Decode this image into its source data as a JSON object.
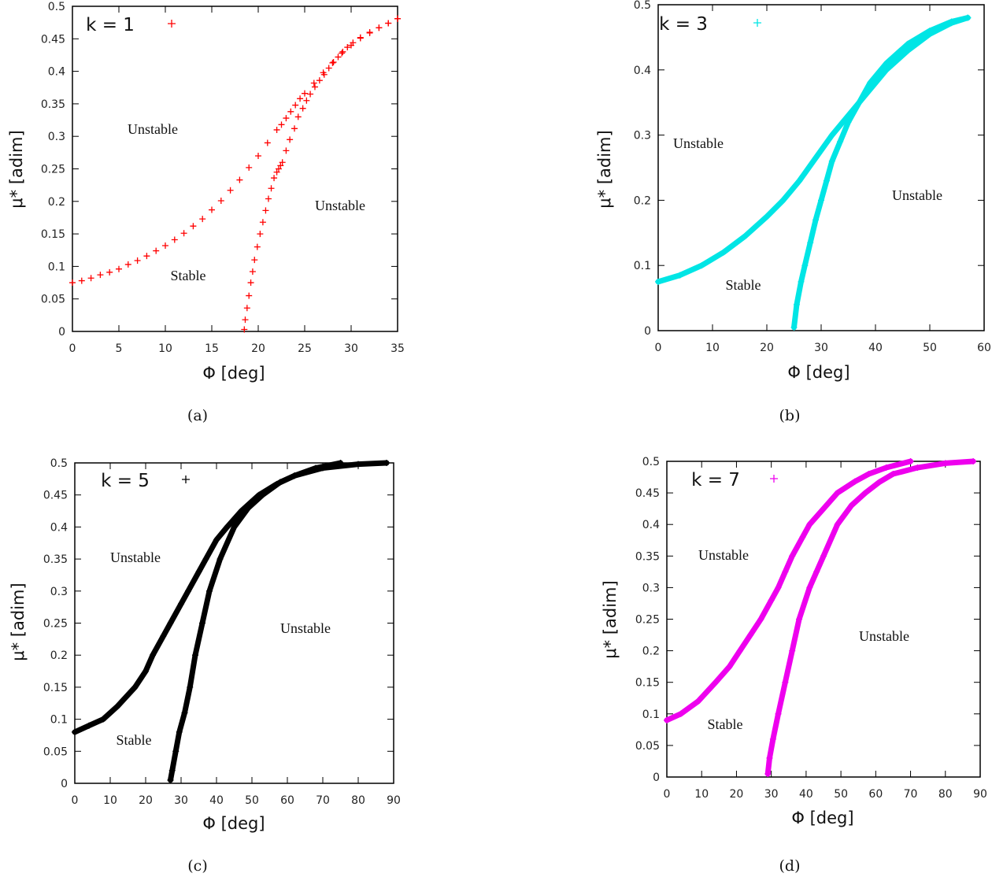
{
  "chart_data": [
    {
      "type": "scatter",
      "caption": "(a)",
      "legend": "k = 1",
      "color": "#ff0000",
      "xlabel": "Φ [deg]",
      "ylabel": "μ* [adim]",
      "xlim": [
        0,
        35
      ],
      "ylim": [
        0,
        0.5
      ],
      "xticks": [
        0,
        5,
        10,
        15,
        20,
        25,
        30,
        35
      ],
      "yticks": [
        0,
        0.05,
        0.1,
        0.15,
        0.2,
        0.25,
        0.3,
        0.35,
        0.4,
        0.45,
        0.5
      ],
      "annotations": [
        "Unstable",
        "Unstable",
        "Stable"
      ],
      "series": [
        {
          "x": [
            0,
            1,
            2,
            3,
            4,
            5,
            6,
            7,
            8,
            9,
            10,
            11,
            12,
            13,
            14,
            15,
            16,
            17,
            18,
            19,
            20,
            21,
            22,
            22.5,
            23,
            23.5,
            24,
            24.5,
            25,
            26,
            27,
            28,
            29,
            30,
            31,
            32,
            33,
            34,
            35
          ],
          "y": [
            0.075,
            0.078,
            0.082,
            0.087,
            0.091,
            0.096,
            0.103,
            0.109,
            0.116,
            0.124,
            0.132,
            0.141,
            0.151,
            0.162,
            0.173,
            0.187,
            0.201,
            0.217,
            0.233,
            0.252,
            0.27,
            0.29,
            0.31,
            0.318,
            0.328,
            0.338,
            0.348,
            0.358,
            0.366,
            0.382,
            0.398,
            0.413,
            0.428,
            0.44,
            0.451,
            0.459,
            0.467,
            0.474,
            0.481
          ]
        },
        {
          "x": [
            18.5,
            18.6,
            18.8,
            19,
            19.2,
            19.4,
            19.6,
            19.9,
            20.2,
            20.5,
            20.8,
            21.1,
            21.4,
            21.7,
            22,
            22.2,
            22.4,
            22.6,
            23,
            23.4,
            23.9,
            24.3,
            24.8,
            25.2,
            25.6,
            26.1,
            26.6,
            27.1,
            27.6,
            28.1,
            28.6,
            29.1,
            29.6,
            30.2,
            31,
            32,
            33,
            34,
            35
          ],
          "y": [
            0.003,
            0.018,
            0.036,
            0.055,
            0.075,
            0.092,
            0.11,
            0.13,
            0.15,
            0.168,
            0.186,
            0.204,
            0.22,
            0.236,
            0.245,
            0.25,
            0.255,
            0.26,
            0.278,
            0.295,
            0.312,
            0.33,
            0.343,
            0.355,
            0.365,
            0.376,
            0.386,
            0.395,
            0.405,
            0.414,
            0.422,
            0.43,
            0.437,
            0.444,
            0.452,
            0.46,
            0.467,
            0.474,
            0.481
          ]
        }
      ]
    },
    {
      "type": "scatter",
      "caption": "(b)",
      "legend": "k = 3",
      "color": "#00e5e5",
      "xlabel": "Φ [deg]",
      "ylabel": "μ* [adim]",
      "xlim": [
        0,
        60
      ],
      "ylim": [
        0,
        0.5
      ],
      "xticks": [
        0,
        10,
        20,
        30,
        40,
        50,
        60
      ],
      "yticks": [
        0,
        0.1,
        0.2,
        0.3,
        0.4,
        0.5
      ],
      "annotations": [
        "Unstable",
        "Unstable",
        "Stable"
      ],
      "series": [
        {
          "x": [
            0,
            4,
            8,
            12,
            16,
            20,
            23,
            26,
            29,
            32,
            35,
            38,
            42,
            46,
            50,
            54,
            57
          ],
          "y": [
            0.075,
            0.085,
            0.1,
            0.12,
            0.145,
            0.175,
            0.2,
            0.23,
            0.265,
            0.3,
            0.33,
            0.36,
            0.4,
            0.43,
            0.455,
            0.472,
            0.48
          ]
        },
        {
          "x": [
            25,
            25.5,
            26.3,
            27,
            28,
            29,
            30,
            31,
            32,
            33.5,
            35,
            37,
            39,
            42,
            46,
            50,
            54,
            57
          ],
          "y": [
            0.005,
            0.04,
            0.075,
            0.1,
            0.135,
            0.17,
            0.2,
            0.23,
            0.26,
            0.29,
            0.32,
            0.35,
            0.38,
            0.41,
            0.44,
            0.46,
            0.474,
            0.48
          ]
        }
      ]
    },
    {
      "type": "scatter",
      "caption": "(c)",
      "legend": "k = 5",
      "color": "#000000",
      "xlabel": "Φ [deg]",
      "ylabel": "μ* [adim]",
      "xlim": [
        0,
        90
      ],
      "ylim": [
        0,
        0.5
      ],
      "xticks": [
        0,
        10,
        20,
        30,
        40,
        50,
        60,
        70,
        80,
        90
      ],
      "yticks": [
        0,
        0.05,
        0.1,
        0.15,
        0.2,
        0.25,
        0.3,
        0.35,
        0.4,
        0.45,
        0.5
      ],
      "annotations": [
        "Unstable",
        "Unstable",
        "Stable"
      ],
      "series": [
        {
          "x": [
            0,
            4,
            8,
            12,
            17,
            20,
            22,
            25,
            27,
            30,
            32,
            35,
            37,
            40,
            43,
            47,
            52,
            57,
            62,
            70,
            80,
            88
          ],
          "y": [
            0.08,
            0.09,
            0.1,
            0.12,
            0.15,
            0.175,
            0.2,
            0.23,
            0.25,
            0.28,
            0.3,
            0.33,
            0.35,
            0.38,
            0.4,
            0.425,
            0.45,
            0.467,
            0.48,
            0.492,
            0.498,
            0.5
          ]
        },
        {
          "x": [
            27,
            27.5,
            28.5,
            29.5,
            31,
            32.5,
            34,
            36,
            38,
            41,
            45,
            49,
            53,
            58,
            62,
            68,
            75
          ],
          "y": [
            0.005,
            0.02,
            0.05,
            0.08,
            0.11,
            0.15,
            0.2,
            0.25,
            0.3,
            0.35,
            0.4,
            0.43,
            0.45,
            0.47,
            0.48,
            0.492,
            0.5
          ]
        }
      ]
    },
    {
      "type": "scatter",
      "caption": "(d)",
      "legend": "k = 7",
      "color": "#ee00ee",
      "xlabel": "Φ [deg]",
      "ylabel": "μ* [adim]",
      "xlim": [
        0,
        90
      ],
      "ylim": [
        0,
        0.5
      ],
      "xticks": [
        0,
        10,
        20,
        30,
        40,
        50,
        60,
        70,
        80,
        90
      ],
      "yticks": [
        0,
        0.05,
        0.1,
        0.15,
        0.2,
        0.25,
        0.3,
        0.35,
        0.4,
        0.45,
        0.5
      ],
      "annotations": [
        "Unstable",
        "Unstable",
        "Stable"
      ],
      "series": [
        {
          "x": [
            0,
            4,
            9,
            14,
            18,
            21,
            24,
            27,
            30,
            32,
            34,
            36,
            39,
            41,
            45,
            49,
            54,
            58,
            63,
            70
          ],
          "y": [
            0.09,
            0.1,
            0.12,
            0.15,
            0.175,
            0.2,
            0.225,
            0.25,
            0.28,
            0.3,
            0.325,
            0.35,
            0.38,
            0.4,
            0.425,
            0.45,
            0.468,
            0.48,
            0.49,
            0.5
          ]
        },
        {
          "x": [
            29,
            29.5,
            30.5,
            32,
            34,
            36,
            38,
            41,
            43,
            45,
            49,
            53,
            57,
            61,
            65,
            72,
            80,
            88
          ],
          "y": [
            0.005,
            0.03,
            0.06,
            0.1,
            0.15,
            0.2,
            0.25,
            0.3,
            0.325,
            0.35,
            0.4,
            0.43,
            0.45,
            0.467,
            0.48,
            0.49,
            0.497,
            0.5
          ]
        }
      ]
    }
  ]
}
